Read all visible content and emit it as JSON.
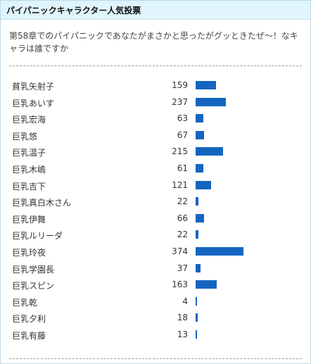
{
  "header": {
    "title": "パイパニックキャラクター人気投票"
  },
  "question": "第58章でのパイパニックであなたがまさかと思ったがグッときたぜ〜！なキャラは誰ですか",
  "colors": {
    "bar": "#1565c0",
    "header_bg": "#dff4fb",
    "border": "#bcd9e8"
  },
  "results": [
    {
      "name": "貧乳矢射子",
      "votes": 159
    },
    {
      "name": "巨乳あいす",
      "votes": 237
    },
    {
      "name": "巨乳宏海",
      "votes": 63
    },
    {
      "name": "巨乳悠",
      "votes": 67
    },
    {
      "name": "巨乳温子",
      "votes": 215
    },
    {
      "name": "巨乳木嶋",
      "votes": 61
    },
    {
      "name": "巨乳吉下",
      "votes": 121
    },
    {
      "name": "巨乳真白木さん",
      "votes": 22
    },
    {
      "name": "巨乳伊舞",
      "votes": 66
    },
    {
      "name": "巨乳ルリーダ",
      "votes": 22
    },
    {
      "name": "巨乳玲夜",
      "votes": 374
    },
    {
      "name": "巨乳学園長",
      "votes": 37
    },
    {
      "name": "巨乳スピン",
      "votes": 163
    },
    {
      "name": "巨乳乾",
      "votes": 4
    },
    {
      "name": "巨乳夕利",
      "votes": 18
    },
    {
      "name": "巨乳有藤",
      "votes": 13
    }
  ]
}
